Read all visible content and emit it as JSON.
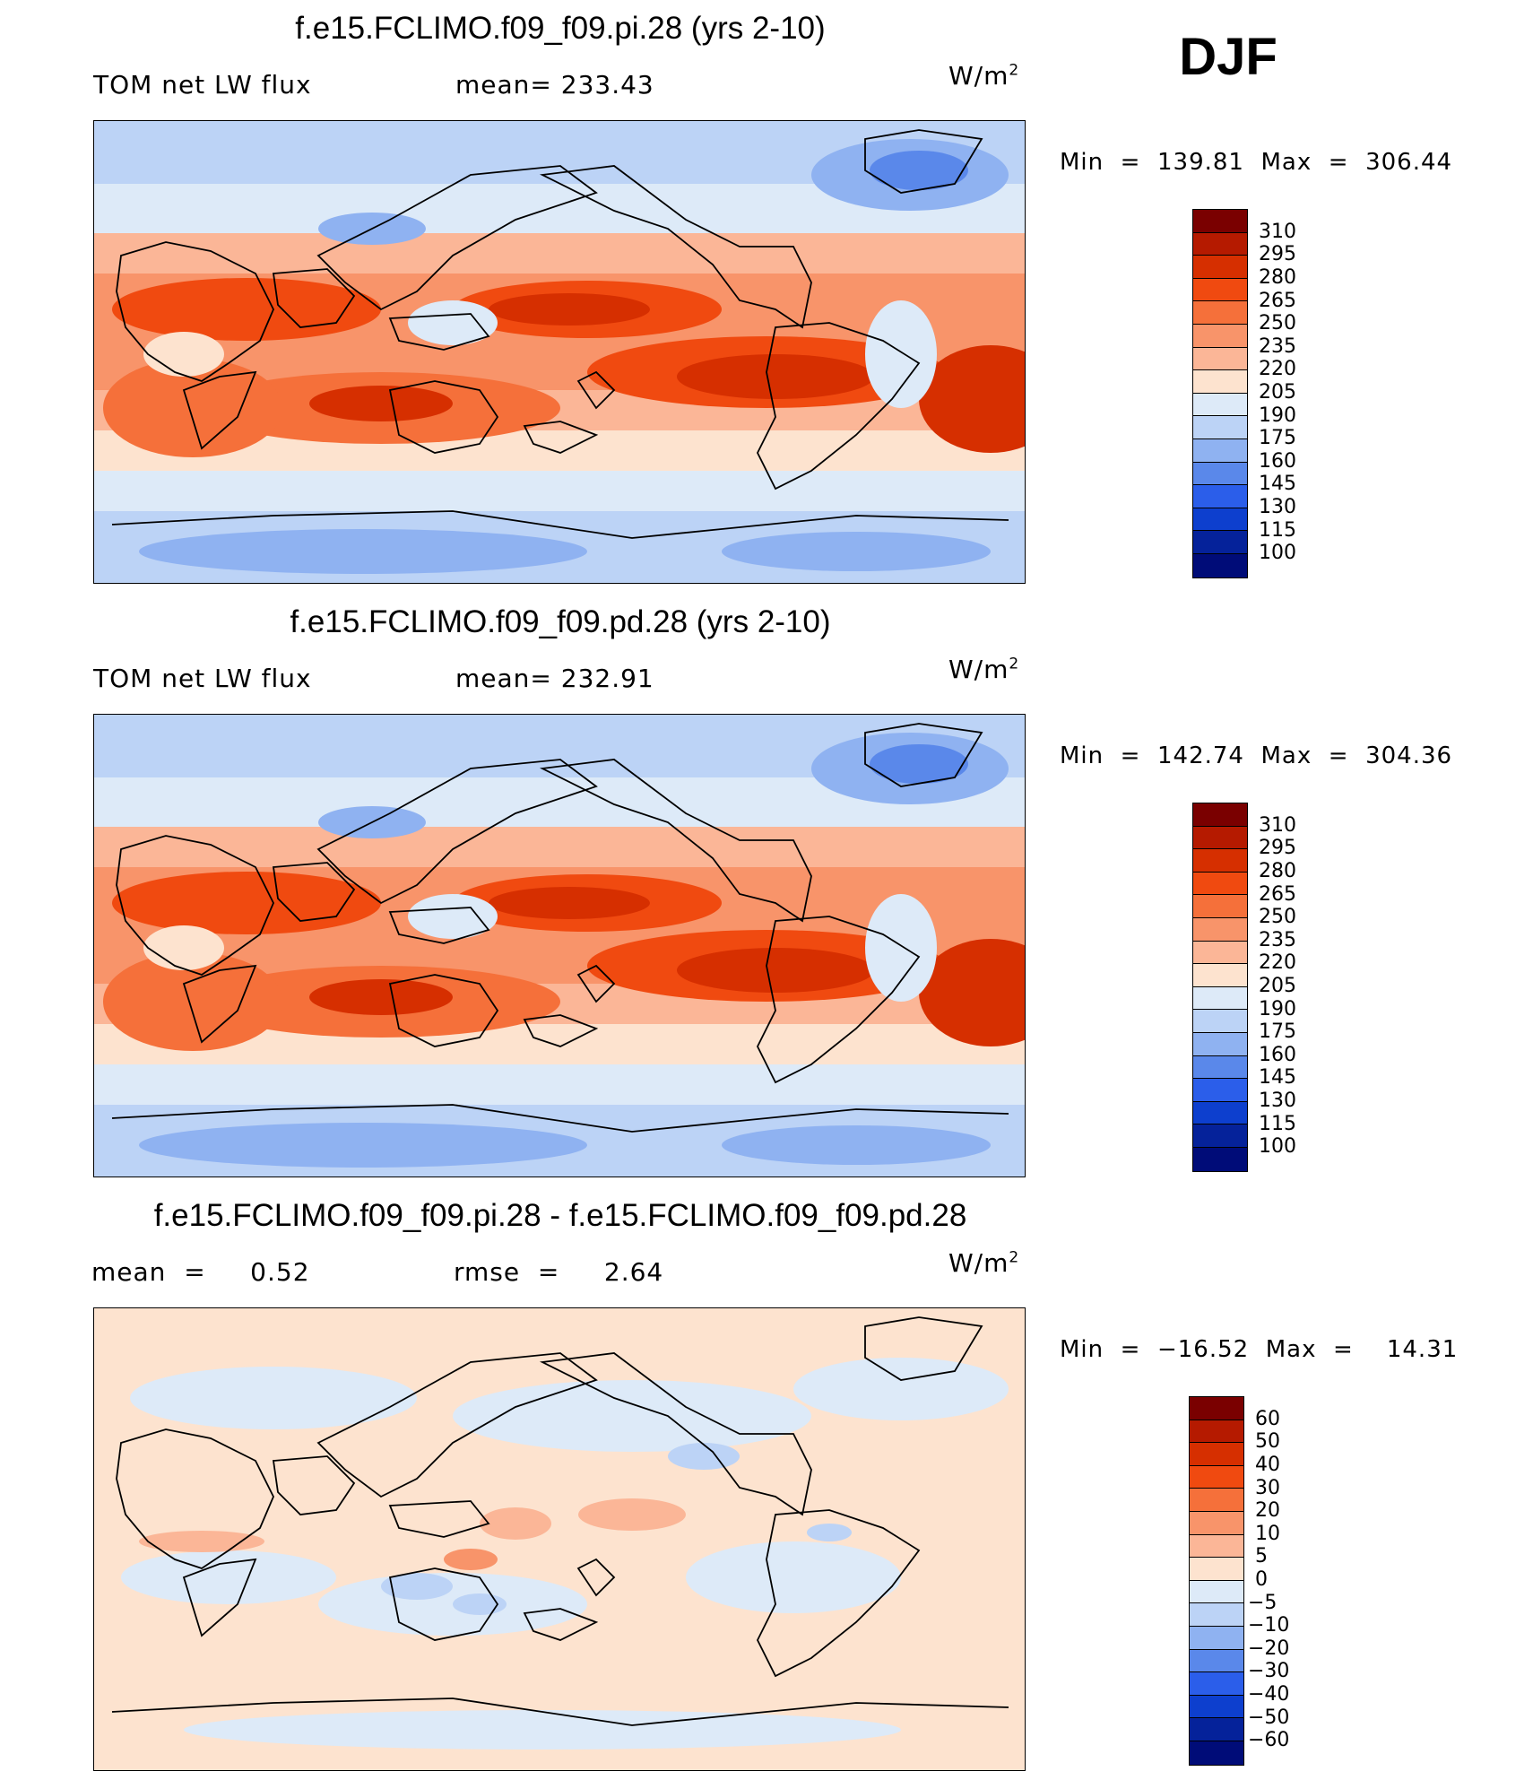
{
  "season": "DJF",
  "panels": [
    {
      "title": "f.e15.FCLIMO.f09_f09.pi.28 (yrs 2-10)",
      "left_label": "TOM net LW flux",
      "mid_label": "mean= 233.43",
      "units": "W/m",
      "units_exp": "2",
      "minmax": "Min  =  139.81  Max  =  306.44",
      "colorbar": "flux"
    },
    {
      "title": "f.e15.FCLIMO.f09_f09.pd.28 (yrs 2-10)",
      "left_label": "TOM net LW flux",
      "mid_label": "mean= 232.91",
      "units": "W/m",
      "units_exp": "2",
      "minmax": "Min  =  142.74  Max  =  304.36",
      "colorbar": "flux"
    },
    {
      "title": "f.e15.FCLIMO.f09_f09.pi.28 - f.e15.FCLIMO.f09_f09.pd.28",
      "left_label": "mean  =     0.52",
      "mid_label": "rmse  =     2.64",
      "units": "W/m",
      "units_exp": "2",
      "minmax": "Min  =  −16.52  Max  =    14.31",
      "colorbar": "diff"
    }
  ],
  "colorbars": {
    "flux": {
      "labels": [
        "310",
        "295",
        "280",
        "265",
        "250",
        "235",
        "220",
        "205",
        "190",
        "175",
        "160",
        "145",
        "130",
        "115",
        "100"
      ],
      "colors": [
        "#7a0000",
        "#b51a00",
        "#d62f00",
        "#f04a10",
        "#f5703a",
        "#f8946a",
        "#fbb697",
        "#fde3cf",
        "#ddeaf8",
        "#bcd3f6",
        "#8fb2f1",
        "#5a88ea",
        "#2b5eea",
        "#0d3fce",
        "#05229a",
        "#000c78"
      ]
    },
    "diff": {
      "labels": [
        "60",
        "50",
        "40",
        "30",
        "20",
        "10",
        "5",
        "0",
        "−5",
        "−10",
        "−20",
        "−30",
        "−40",
        "−50",
        "−60"
      ],
      "colors": [
        "#7a0000",
        "#b51a00",
        "#d62f00",
        "#f04a10",
        "#f5703a",
        "#f8946a",
        "#fbb697",
        "#fde3cf",
        "#ddeaf8",
        "#bcd3f6",
        "#8fb2f1",
        "#5a88ea",
        "#2b5eea",
        "#0d3fce",
        "#05229a",
        "#000c78"
      ]
    }
  }
}
